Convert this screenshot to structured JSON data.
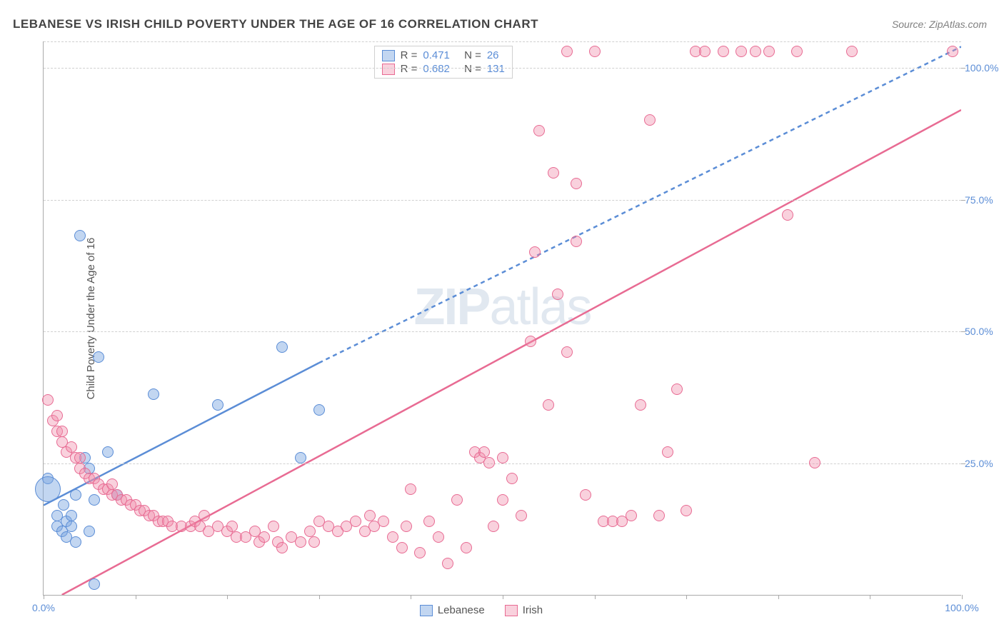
{
  "title": "LEBANESE VS IRISH CHILD POVERTY UNDER THE AGE OF 16 CORRELATION CHART",
  "source": "Source: ZipAtlas.com",
  "y_axis_label": "Child Poverty Under the Age of 16",
  "watermark_bold": "ZIP",
  "watermark_rest": "atlas",
  "chart": {
    "type": "scatter",
    "xlim": [
      0,
      100
    ],
    "ylim": [
      0,
      105
    ],
    "x_ticks": [
      0,
      10,
      20,
      30,
      40,
      50,
      60,
      70,
      80,
      90,
      100
    ],
    "y_ticks": [
      25,
      50,
      75,
      100
    ],
    "x_tick_labels": {
      "0": "0.0%",
      "100": "100.0%"
    },
    "y_tick_labels": {
      "25": "25.0%",
      "50": "50.0%",
      "75": "75.0%",
      "100": "100.0%"
    },
    "grid_color": "#d0d0d0",
    "background_color": "#ffffff",
    "axis_color": "#aaaaaa",
    "tick_label_color": "#5b8dd6",
    "point_radius": 8,
    "series": [
      {
        "name": "Lebanese",
        "color_fill": "rgba(120, 165, 225, 0.45)",
        "color_stroke": "#5b8dd6",
        "r_label": "R =",
        "r_value": "0.471",
        "n_label": "N =",
        "n_value": "26",
        "trend_solid": {
          "x1": 0,
          "y1": 17,
          "x2": 30,
          "y2": 44
        },
        "trend_dash": {
          "x1": 30,
          "y1": 44,
          "x2": 100,
          "y2": 104
        },
        "line_width": 2.5,
        "points": [
          [
            0.5,
            22
          ],
          [
            0.5,
            20,
            18
          ],
          [
            1.5,
            15
          ],
          [
            1.5,
            13
          ],
          [
            2,
            12
          ],
          [
            2.2,
            17
          ],
          [
            2.5,
            14
          ],
          [
            2.5,
            11
          ],
          [
            3,
            15
          ],
          [
            3,
            13
          ],
          [
            3.5,
            10
          ],
          [
            3.5,
            19
          ],
          [
            4,
            68
          ],
          [
            4.5,
            26
          ],
          [
            5,
            24
          ],
          [
            5.5,
            18
          ],
          [
            5,
            12
          ],
          [
            5.5,
            2
          ],
          [
            6,
            45
          ],
          [
            7,
            27
          ],
          [
            8,
            19
          ],
          [
            12,
            38
          ],
          [
            19,
            36
          ],
          [
            26,
            47
          ],
          [
            28,
            26
          ],
          [
            30,
            35
          ]
        ]
      },
      {
        "name": "Irish",
        "color_fill": "rgba(240, 140, 170, 0.4)",
        "color_stroke": "#e86b93",
        "r_label": "R =",
        "r_value": "0.682",
        "n_label": "N =",
        "n_value": "131",
        "trend_solid": {
          "x1": 2,
          "y1": 0,
          "x2": 100,
          "y2": 92
        },
        "trend_dash": null,
        "line_width": 2.5,
        "points": [
          [
            0.5,
            37
          ],
          [
            1,
            33
          ],
          [
            1.5,
            34
          ],
          [
            1.5,
            31
          ],
          [
            2,
            31
          ],
          [
            2,
            29
          ],
          [
            2.5,
            27
          ],
          [
            3,
            28
          ],
          [
            3.5,
            26
          ],
          [
            4,
            26
          ],
          [
            4,
            24
          ],
          [
            4.5,
            23
          ],
          [
            5,
            22
          ],
          [
            5.5,
            22
          ],
          [
            6,
            21
          ],
          [
            6.5,
            20
          ],
          [
            7,
            20
          ],
          [
            7.5,
            19
          ],
          [
            7.5,
            21
          ],
          [
            8,
            19
          ],
          [
            8.5,
            18
          ],
          [
            9,
            18
          ],
          [
            9.5,
            17
          ],
          [
            10,
            17
          ],
          [
            10.5,
            16
          ],
          [
            11,
            16
          ],
          [
            11.5,
            15
          ],
          [
            12,
            15
          ],
          [
            12.5,
            14
          ],
          [
            13,
            14
          ],
          [
            13.5,
            14
          ],
          [
            14,
            13
          ],
          [
            15,
            13
          ],
          [
            16,
            13
          ],
          [
            16.5,
            14
          ],
          [
            17,
            13
          ],
          [
            17.5,
            15
          ],
          [
            18,
            12
          ],
          [
            19,
            13
          ],
          [
            20,
            12
          ],
          [
            20.5,
            13
          ],
          [
            21,
            11
          ],
          [
            22,
            11
          ],
          [
            23,
            12
          ],
          [
            23.5,
            10
          ],
          [
            24,
            11
          ],
          [
            25,
            13
          ],
          [
            25.5,
            10
          ],
          [
            26,
            9
          ],
          [
            27,
            11
          ],
          [
            28,
            10
          ],
          [
            29,
            12
          ],
          [
            29.5,
            10
          ],
          [
            30,
            14
          ],
          [
            31,
            13
          ],
          [
            32,
            12
          ],
          [
            33,
            13
          ],
          [
            34,
            14
          ],
          [
            35,
            12
          ],
          [
            35.5,
            15
          ],
          [
            36,
            13
          ],
          [
            37,
            14
          ],
          [
            38,
            11
          ],
          [
            39,
            9
          ],
          [
            39.5,
            13
          ],
          [
            40,
            20
          ],
          [
            41,
            8
          ],
          [
            42,
            14
          ],
          [
            43,
            11
          ],
          [
            44,
            6
          ],
          [
            45,
            18
          ],
          [
            46,
            9
          ],
          [
            47,
            27
          ],
          [
            47.5,
            26
          ],
          [
            48,
            27
          ],
          [
            48.5,
            25
          ],
          [
            49,
            13
          ],
          [
            50,
            18
          ],
          [
            50,
            26
          ],
          [
            51,
            22
          ],
          [
            52,
            15
          ],
          [
            53,
            48
          ],
          [
            53.5,
            65
          ],
          [
            54,
            88
          ],
          [
            55,
            36
          ],
          [
            55.5,
            80
          ],
          [
            56,
            57
          ],
          [
            57,
            46
          ],
          [
            57,
            103
          ],
          [
            58,
            78
          ],
          [
            58,
            67
          ],
          [
            59,
            19
          ],
          [
            60,
            103
          ],
          [
            61,
            14
          ],
          [
            62,
            14
          ],
          [
            63,
            14
          ],
          [
            64,
            15
          ],
          [
            65,
            36
          ],
          [
            66,
            90
          ],
          [
            67,
            15
          ],
          [
            68,
            27
          ],
          [
            69,
            39
          ],
          [
            70,
            16
          ],
          [
            71,
            103
          ],
          [
            72,
            103
          ],
          [
            74,
            103
          ],
          [
            76,
            103
          ],
          [
            77.5,
            103
          ],
          [
            79,
            103
          ],
          [
            81,
            72
          ],
          [
            82,
            103
          ],
          [
            84,
            25
          ],
          [
            88,
            103
          ],
          [
            99,
            103
          ]
        ]
      }
    ]
  },
  "legend_bottom": [
    {
      "label": "Lebanese",
      "fill": "rgba(120, 165, 225, 0.45)",
      "stroke": "#5b8dd6"
    },
    {
      "label": "Irish",
      "fill": "rgba(240, 140, 170, 0.4)",
      "stroke": "#e86b93"
    }
  ]
}
